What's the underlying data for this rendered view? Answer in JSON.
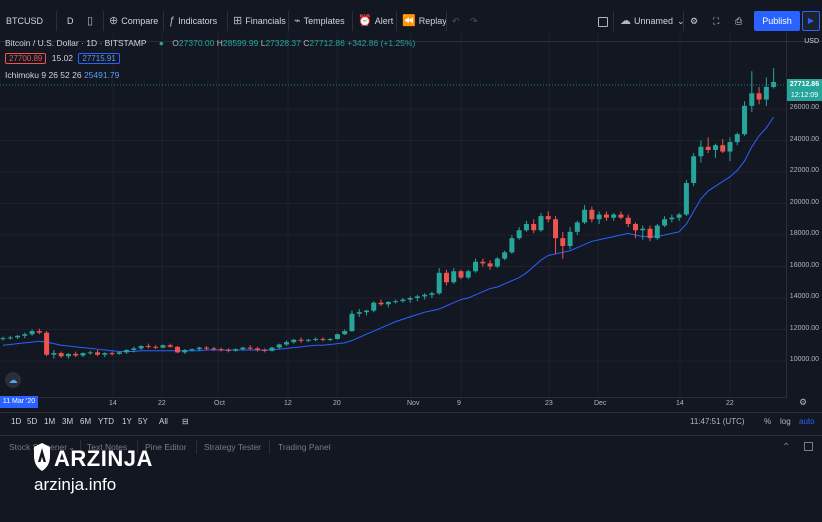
{
  "toolbar": {
    "symbol": "BTCUSD",
    "interval": "D",
    "compare": "Compare",
    "indicators": "Indicators",
    "financials": "Financials",
    "templates": "Templates",
    "alert": "Alert",
    "replay": "Replay",
    "layout_name": "Unnamed",
    "publish": "Publish"
  },
  "legend": {
    "title": "Bitcoin / U.S. Dollar · 1D · BITSTAMP",
    "open_k": "O",
    "open": "27370.00",
    "high_k": "H",
    "high": "28599.99",
    "low_k": "L",
    "low": "27328.37",
    "close_k": "C",
    "close": "27712.86",
    "change": "+342.86 (+1.25%)",
    "bid": "27700.89",
    "spread": "15.02",
    "ask": "27715.91",
    "indicator_name": "Ichimoku 9 26 52 26",
    "indicator_value": "25491.79"
  },
  "price_axis": {
    "currency": "USD",
    "labels": [
      "26000.00",
      "24000.00",
      "22000.00",
      "20000.00",
      "18000.00",
      "16000.00",
      "14000.00",
      "12000.00",
      "10000.00"
    ],
    "last_price": "27712.86",
    "countdown": "12:12:09",
    "last_price_color": "#26a69a",
    "countdown_color": "#26a69a"
  },
  "time_axis": {
    "labels": [
      "14",
      "22",
      "Oct",
      "12",
      "20",
      "Nov",
      "9",
      "23",
      "Dec",
      "14",
      "22"
    ],
    "crosshair_date": "11 Mar '20"
  },
  "range_bar": {
    "ranges": [
      "1D",
      "5D",
      "1M",
      "3M",
      "6M",
      "YTD",
      "1Y",
      "5Y",
      "All"
    ],
    "clock": "11:47:51 (UTC)",
    "percent": "%",
    "log": "log",
    "auto": "auto"
  },
  "bottom_panel": {
    "tabs": [
      "Stock Screener",
      "Text Notes",
      "Pine Editor",
      "Strategy Tester",
      "Trading Panel"
    ]
  },
  "watermark": {
    "brand": "ARZINJA",
    "url": "arzinja.info"
  },
  "colors": {
    "up": "#26a69a",
    "down": "#ef5350",
    "ichimoku": "#2962ff",
    "accent": "#2962ff",
    "background": "#131722"
  },
  "chart_data": {
    "type": "candlestick",
    "title": "Bitcoin / U.S. Dollar · 1D · BITSTAMP",
    "ylabel": "USD",
    "ylim": [
      8000,
      28600
    ],
    "candles": [
      [
        11400,
        11550,
        11300,
        11450
      ],
      [
        11450,
        11600,
        11350,
        11500
      ],
      [
        11500,
        11650,
        11400,
        11600
      ],
      [
        11600,
        11800,
        11450,
        11700
      ],
      [
        11700,
        12000,
        11600,
        11900
      ],
      [
        11900,
        12050,
        11700,
        11800
      ],
      [
        11800,
        11900,
        10300,
        10400
      ],
      [
        10400,
        10700,
        10150,
        10500
      ],
      [
        10500,
        10600,
        10200,
        10300
      ],
      [
        10300,
        10500,
        10150,
        10450
      ],
      [
        10450,
        10600,
        10250,
        10350
      ],
      [
        10350,
        10550,
        10250,
        10500
      ],
      [
        10500,
        10650,
        10400,
        10550
      ],
      [
        10550,
        10700,
        10300,
        10400
      ],
      [
        10400,
        10550,
        10250,
        10500
      ],
      [
        10500,
        10600,
        10350,
        10450
      ],
      [
        10450,
        10600,
        10400,
        10550
      ],
      [
        10550,
        10750,
        10450,
        10700
      ],
      [
        10700,
        10900,
        10550,
        10800
      ],
      [
        10800,
        11000,
        10700,
        10950
      ],
      [
        10950,
        11100,
        10800,
        10900
      ],
      [
        10900,
        11000,
        10750,
        10850
      ],
      [
        10850,
        11050,
        10800,
        11000
      ],
      [
        11000,
        11100,
        10850,
        10900
      ],
      [
        10900,
        10950,
        10500,
        10550
      ],
      [
        10550,
        10750,
        10450,
        10700
      ],
      [
        10700,
        10800,
        10600,
        10750
      ],
      [
        10750,
        10900,
        10650,
        10850
      ],
      [
        10850,
        10950,
        10700,
        10800
      ],
      [
        10800,
        10900,
        10650,
        10750
      ],
      [
        10750,
        10850,
        10600,
        10700
      ],
      [
        10700,
        10800,
        10550,
        10650
      ],
      [
        10650,
        10800,
        10600,
        10750
      ],
      [
        10750,
        10900,
        10650,
        10850
      ],
      [
        10850,
        11000,
        10700,
        10800
      ],
      [
        10800,
        10900,
        10600,
        10700
      ],
      [
        10700,
        10800,
        10550,
        10650
      ],
      [
        10650,
        10900,
        10600,
        10850
      ],
      [
        10850,
        11100,
        10750,
        11050
      ],
      [
        11050,
        11300,
        10950,
        11200
      ],
      [
        11200,
        11400,
        11100,
        11350
      ],
      [
        11350,
        11500,
        11150,
        11300
      ],
      [
        11300,
        11400,
        11200,
        11350
      ],
      [
        11350,
        11500,
        11250,
        11400
      ],
      [
        11400,
        11500,
        11250,
        11350
      ],
      [
        11350,
        11450,
        11250,
        11400
      ],
      [
        11400,
        11750,
        11350,
        11700
      ],
      [
        11700,
        12000,
        11650,
        11900
      ],
      [
        11900,
        13200,
        11850,
        13000
      ],
      [
        13000,
        13300,
        12800,
        13100
      ],
      [
        13100,
        13250,
        12900,
        13200
      ],
      [
        13200,
        13800,
        13100,
        13700
      ],
      [
        13700,
        13900,
        13500,
        13600
      ],
      [
        13600,
        13800,
        13400,
        13750
      ],
      [
        13750,
        13900,
        13650,
        13800
      ],
      [
        13800,
        14000,
        13700,
        13900
      ],
      [
        13900,
        14100,
        13700,
        14000
      ],
      [
        14000,
        14200,
        13800,
        14100
      ],
      [
        14100,
        14300,
        13900,
        14200
      ],
      [
        14200,
        14400,
        14000,
        14300
      ],
      [
        14300,
        15900,
        14200,
        15600
      ],
      [
        15600,
        15800,
        14800,
        15000
      ],
      [
        15000,
        15900,
        14900,
        15700
      ],
      [
        15700,
        15800,
        15200,
        15300
      ],
      [
        15300,
        15800,
        15200,
        15700
      ],
      [
        15700,
        16500,
        15600,
        16300
      ],
      [
        16300,
        16500,
        16000,
        16200
      ],
      [
        16200,
        16400,
        15800,
        16000
      ],
      [
        16000,
        16600,
        15900,
        16500
      ],
      [
        16500,
        17000,
        16400,
        16900
      ],
      [
        16900,
        18000,
        16800,
        17800
      ],
      [
        17800,
        18500,
        17700,
        18300
      ],
      [
        18300,
        18900,
        18200,
        18700
      ],
      [
        18700,
        19000,
        18100,
        18300
      ],
      [
        18300,
        19400,
        18200,
        19200
      ],
      [
        19200,
        19500,
        18800,
        19000
      ],
      [
        19000,
        19200,
        16800,
        17800
      ],
      [
        17800,
        18200,
        16500,
        17300
      ],
      [
        17300,
        18500,
        17100,
        18200
      ],
      [
        18200,
        18900,
        18000,
        18800
      ],
      [
        18800,
        19900,
        18700,
        19600
      ],
      [
        19600,
        19800,
        18800,
        19000
      ],
      [
        19000,
        19500,
        18700,
        19300
      ],
      [
        19300,
        19500,
        18900,
        19100
      ],
      [
        19100,
        19400,
        18900,
        19300
      ],
      [
        19300,
        19500,
        19000,
        19100
      ],
      [
        19100,
        19300,
        18500,
        18700
      ],
      [
        18700,
        18800,
        17800,
        18300
      ],
      [
        18300,
        18600,
        17700,
        18400
      ],
      [
        18400,
        18600,
        17600,
        17800
      ],
      [
        17800,
        18700,
        17700,
        18600
      ],
      [
        18600,
        19200,
        18500,
        19000
      ],
      [
        19000,
        19300,
        18800,
        19100
      ],
      [
        19100,
        19400,
        18900,
        19300
      ],
      [
        19300,
        21500,
        19200,
        21300
      ],
      [
        21300,
        23200,
        21100,
        23000
      ],
      [
        23000,
        24000,
        22600,
        23600
      ],
      [
        23600,
        24200,
        23200,
        23400
      ],
      [
        23400,
        23800,
        22900,
        23700
      ],
      [
        23700,
        24100,
        23200,
        23300
      ],
      [
        23300,
        24200,
        22700,
        23900
      ],
      [
        23900,
        24500,
        23700,
        24400
      ],
      [
        24400,
        26500,
        24300,
        26200
      ],
      [
        26200,
        28400,
        25800,
        27000
      ],
      [
        27000,
        27400,
        26300,
        26600
      ],
      [
        26600,
        28000,
        26200,
        27400
      ],
      [
        27400,
        28600,
        27300,
        27712.86
      ]
    ],
    "ichimoku_base_line": [
      11000,
      11050,
      11100,
      11150,
      11200,
      11250,
      11200,
      11100,
      11000,
      10950,
      10900,
      10850,
      10800,
      10750,
      10700,
      10650,
      10600,
      10600,
      10600,
      10650,
      10650,
      10650,
      10650,
      10650,
      10650,
      10650,
      10650,
      10650,
      10700,
      10700,
      10700,
      10700,
      10700,
      10700,
      10700,
      10700,
      10700,
      10700,
      10750,
      10800,
      10850,
      10900,
      10950,
      11000,
      11000,
      11050,
      11100,
      11150,
      11300,
      11500,
      11700,
      11900,
      12100,
      12300,
      12500,
      12650,
      12800,
      12950,
      13100,
      13200,
      13300,
      13500,
      13700,
      13900,
      14000,
      14200,
      14400,
      14600,
      14700,
      14900,
      15100,
      15300,
      15600,
      16000,
      16400,
      16700,
      16800,
      16900,
      17000,
      17200,
      17400,
      17600,
      17700,
      17800,
      17900,
      18000,
      18100,
      18000,
      17900,
      17900,
      17900,
      18000,
      18100,
      18200,
      18700,
      19500,
      20300,
      20800,
      21100,
      21400,
      21700,
      22100,
      22700,
      23600,
      24300,
      24800,
      25491.79
    ]
  }
}
